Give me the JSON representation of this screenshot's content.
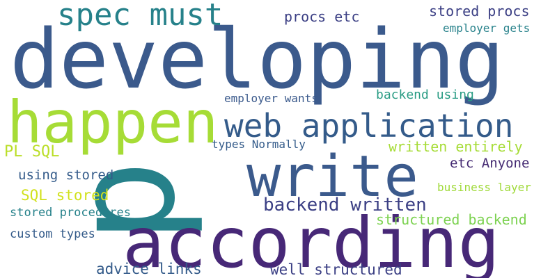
{
  "words": [
    {
      "text": "developing",
      "color": "#3b5a8c",
      "size": 118
    },
    {
      "text": "p",
      "color": "#26818a",
      "size": 200,
      "rotate": -90
    },
    {
      "text": "according",
      "color": "#472877",
      "size": 100
    },
    {
      "text": "happen",
      "color": "#a6dc36",
      "size": 84
    },
    {
      "text": "write",
      "color": "#3b5a8c",
      "size": 82
    },
    {
      "text": "web application",
      "color": "#345b8a",
      "size": 46
    },
    {
      "text": "spec must",
      "color": "#26818a",
      "size": 44
    },
    {
      "text": "backend written",
      "color": "#3b3f84",
      "size": 26
    },
    {
      "text": "structured backend",
      "color": "#7cd250",
      "size": 20
    },
    {
      "text": "procs etc",
      "color": "#3b3f84",
      "size": 20
    },
    {
      "text": "stored procs",
      "color": "#3b3f84",
      "size": 20
    },
    {
      "text": "employer gets",
      "color": "#26818a",
      "size": 16
    },
    {
      "text": "employer wants",
      "color": "#3b5a8c",
      "size": 16
    },
    {
      "text": "backend using",
      "color": "#2a9c84",
      "size": 18
    },
    {
      "text": "PL SQL",
      "color": "#bade28",
      "size": 22
    },
    {
      "text": "types Normally",
      "color": "#345b8a",
      "size": 16
    },
    {
      "text": "written entirely",
      "color": "#a6dc36",
      "size": 20
    },
    {
      "text": "using stored",
      "color": "#345b8a",
      "size": 19
    },
    {
      "text": "etc Anyone",
      "color": "#442a72",
      "size": 19
    },
    {
      "text": "SQL stored",
      "color": "#d1e11c",
      "size": 21
    },
    {
      "text": "business layer",
      "color": "#9fd938",
      "size": 16
    },
    {
      "text": "stored procedures",
      "color": "#26818a",
      "size": 17
    },
    {
      "text": "custom types",
      "color": "#345b8a",
      "size": 17
    },
    {
      "text": "advice links",
      "color": "#345b8a",
      "size": 21
    },
    {
      "text": "well structured",
      "color": "#3b3f84",
      "size": 21
    }
  ]
}
